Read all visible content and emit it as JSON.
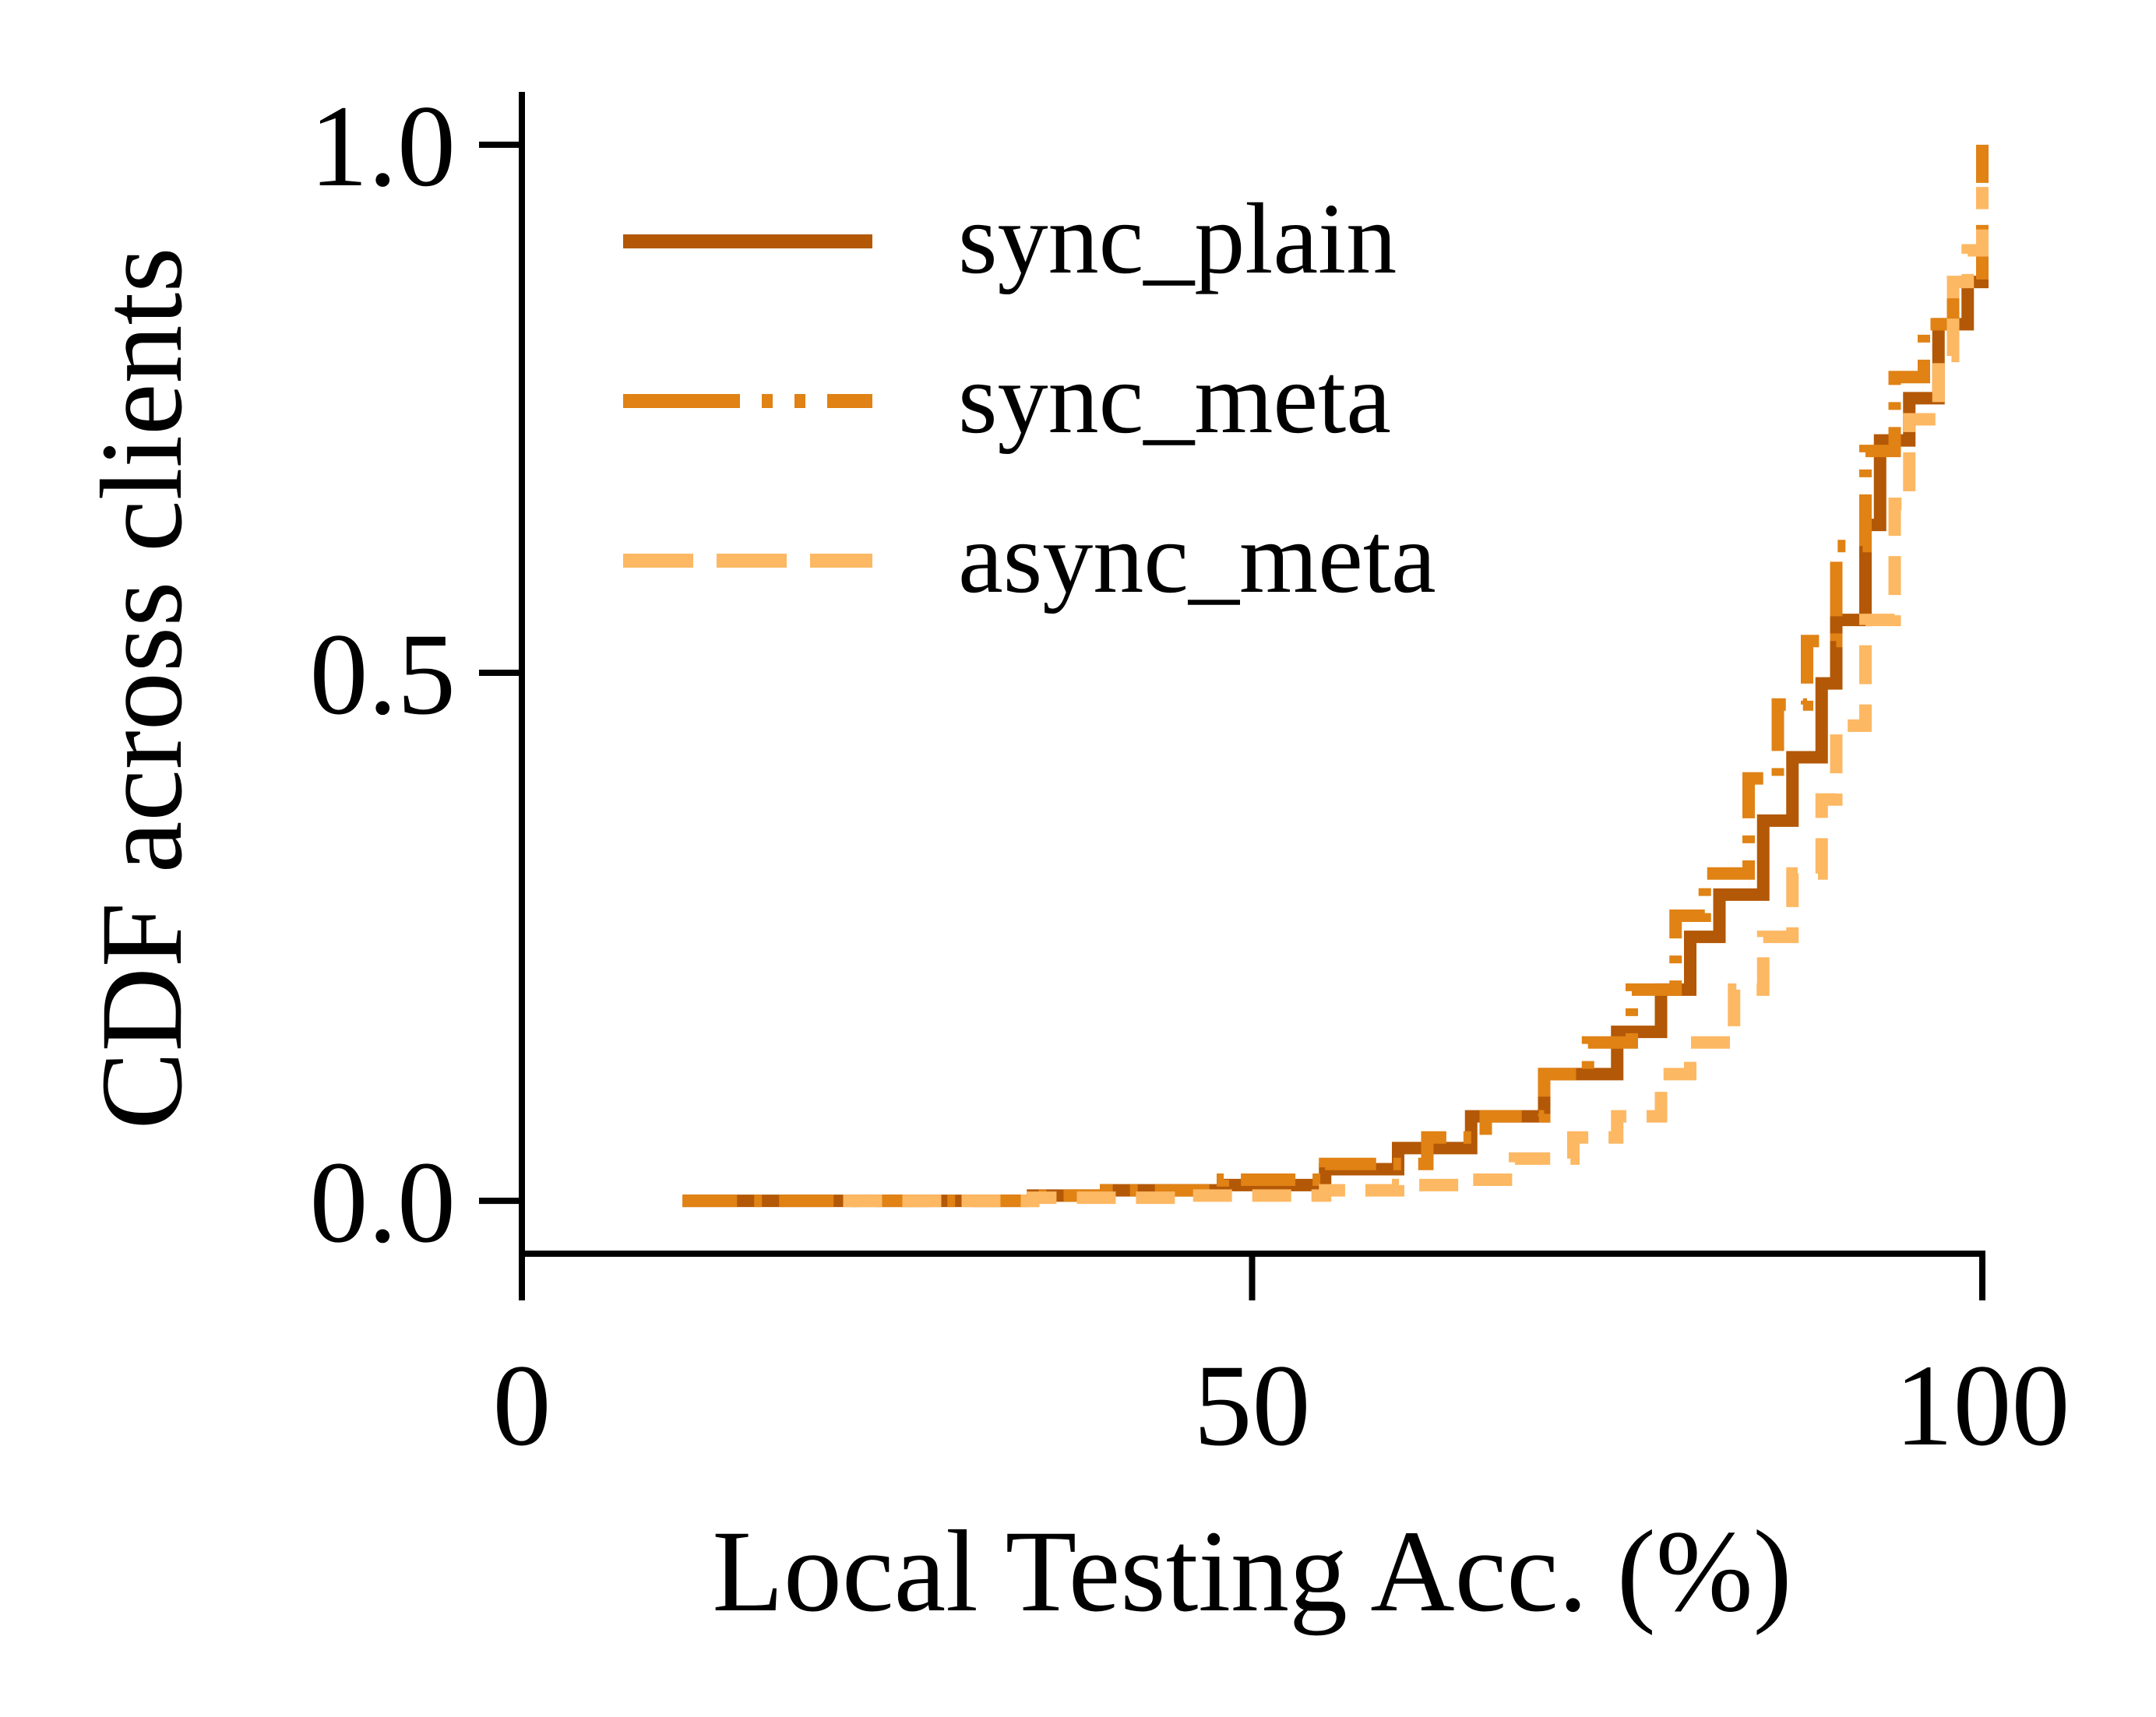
{
  "chart_data": {
    "type": "line",
    "xlabel": "Local Testing Acc. (%)",
    "ylabel": "CDF across clients",
    "xlim": [
      0,
      100
    ],
    "ylim": [
      -0.05,
      1.05
    ],
    "x_ticks": [
      "0",
      "50",
      "100"
    ],
    "x_tick_values": [
      0,
      50,
      100
    ],
    "y_ticks": [
      "0.0",
      "0.5",
      "1.0"
    ],
    "y_tick_values": [
      0.0,
      0.5,
      1.0
    ],
    "grid": false,
    "legend_position": "top-left",
    "series": [
      {
        "name": "sync_plain",
        "color": "#B35806",
        "style": "solid",
        "points": [
          [
            11,
            0
          ],
          [
            20,
            0
          ],
          [
            35,
            0.005
          ],
          [
            40,
            0.01
          ],
          [
            48,
            0.015
          ],
          [
            55,
            0.03
          ],
          [
            60,
            0.05
          ],
          [
            65,
            0.08
          ],
          [
            70,
            0.12
          ],
          [
            75,
            0.16
          ],
          [
            78,
            0.2
          ],
          [
            80,
            0.25
          ],
          [
            82,
            0.29
          ],
          [
            85,
            0.36
          ],
          [
            87,
            0.42
          ],
          [
            89,
            0.49
          ],
          [
            90,
            0.55
          ],
          [
            92,
            0.64
          ],
          [
            93,
            0.72
          ],
          [
            95,
            0.76
          ],
          [
            97,
            0.83
          ],
          [
            99,
            0.87
          ],
          [
            100,
            0.88
          ]
        ]
      },
      {
        "name": "sync_meta",
        "color": "#E08214",
        "style": "dashdot",
        "points": [
          [
            11,
            0
          ],
          [
            20,
            0
          ],
          [
            35,
            0.005
          ],
          [
            40,
            0.01
          ],
          [
            48,
            0.02
          ],
          [
            55,
            0.035
          ],
          [
            62,
            0.06
          ],
          [
            66,
            0.08
          ],
          [
            70,
            0.12
          ],
          [
            73,
            0.15
          ],
          [
            76,
            0.2
          ],
          [
            79,
            0.27
          ],
          [
            81,
            0.31
          ],
          [
            84,
            0.4
          ],
          [
            86,
            0.47
          ],
          [
            88,
            0.53
          ],
          [
            90,
            0.62
          ],
          [
            92,
            0.71
          ],
          [
            94,
            0.78
          ],
          [
            96,
            0.83
          ],
          [
            98,
            0.87
          ],
          [
            100,
            1.0
          ]
        ]
      },
      {
        "name": "async_meta",
        "color": "#FDB863",
        "style": "dashed",
        "points": [
          [
            22,
            0
          ],
          [
            35,
            0.003
          ],
          [
            45,
            0.005
          ],
          [
            55,
            0.01
          ],
          [
            60,
            0.015
          ],
          [
            65,
            0.02
          ],
          [
            68,
            0.04
          ],
          [
            72,
            0.06
          ],
          [
            75,
            0.08
          ],
          [
            78,
            0.12
          ],
          [
            80,
            0.15
          ],
          [
            83,
            0.2
          ],
          [
            85,
            0.25
          ],
          [
            87,
            0.31
          ],
          [
            89,
            0.38
          ],
          [
            90,
            0.45
          ],
          [
            92,
            0.55
          ],
          [
            94,
            0.66
          ],
          [
            95,
            0.74
          ],
          [
            97,
            0.8
          ],
          [
            98,
            0.87
          ],
          [
            99,
            0.9
          ],
          [
            100,
            0.96
          ]
        ]
      }
    ]
  }
}
